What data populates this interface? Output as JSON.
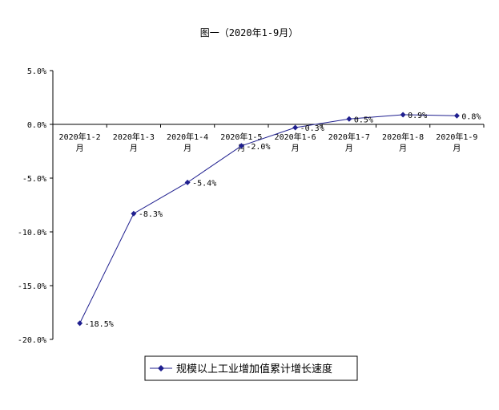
{
  "chart_data": {
    "type": "line",
    "title": "图一（2020年1-9月）",
    "categories": [
      [
        "2020年1-2",
        "月"
      ],
      [
        "2020年1-3",
        "月"
      ],
      [
        "2020年1-4",
        "月"
      ],
      [
        "2020年1-5",
        "月"
      ],
      [
        "2020年1-6",
        "月"
      ],
      [
        "2020年1-7",
        "月"
      ],
      [
        "2020年1-8",
        "月"
      ],
      [
        "2020年1-9",
        "月"
      ]
    ],
    "series": [
      {
        "name": "规模以上工业增加值累计增长速度",
        "values": [
          -18.5,
          -8.3,
          -5.4,
          -2.0,
          -0.3,
          0.5,
          0.9,
          0.8
        ],
        "labels": [
          "-18.5%",
          "-8.3%",
          "-5.4%",
          "-2.0%",
          "-0.3%",
          "0.5%",
          "0.9%",
          "0.8%"
        ],
        "color": "#1f1f8f"
      }
    ],
    "yticks": [
      5.0,
      0.0,
      -5.0,
      -10.0,
      -15.0,
      -20.0
    ],
    "ytick_labels": [
      "5.0%",
      "0.0%",
      "-5.0%",
      "-10.0%",
      "-15.0%",
      "-20.0%"
    ],
    "ylim": [
      -20,
      5
    ],
    "grid": false,
    "legend": "bottom"
  }
}
